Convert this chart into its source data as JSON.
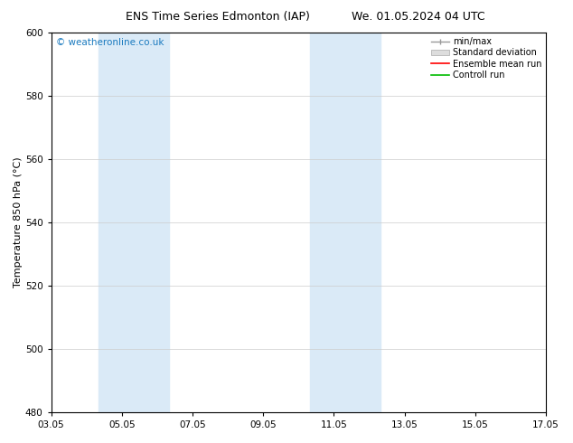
{
  "title_left": "ENS Time Series Edmonton (IAP)",
  "title_right": "We. 01.05.2024 04 UTC",
  "ylabel": "Temperature 850 hPa (°C)",
  "ylim": [
    480,
    600
  ],
  "yticks": [
    480,
    500,
    520,
    540,
    560,
    580,
    600
  ],
  "xtick_labels": [
    "03.05",
    "05.05",
    "07.05",
    "09.05",
    "11.05",
    "13.05",
    "15.05",
    "17.05"
  ],
  "xtick_positions": [
    0,
    2,
    4,
    6,
    8,
    10,
    12,
    14
  ],
  "watermark": "© weatheronline.co.uk",
  "watermark_color": "#1a7abf",
  "bg_color": "#ffffff",
  "plot_bg_color": "#ffffff",
  "shaded_bands": [
    {
      "x_start": 1.33,
      "x_end": 3.33,
      "color": "#daeaf7"
    },
    {
      "x_start": 7.33,
      "x_end": 9.33,
      "color": "#daeaf7"
    }
  ],
  "legend_items": [
    {
      "label": "min/max",
      "color": "#999999",
      "style": "errorbar"
    },
    {
      "label": "Standard deviation",
      "color": "#cccccc",
      "style": "fill"
    },
    {
      "label": "Ensemble mean run",
      "color": "#ff0000",
      "style": "line"
    },
    {
      "label": "Controll run",
      "color": "#00bb00",
      "style": "line"
    }
  ],
  "grid_color": "#cccccc",
  "tick_color": "#000000",
  "spine_color": "#000000",
  "title_fontsize": 9,
  "label_fontsize": 8,
  "tick_fontsize": 7.5,
  "legend_fontsize": 7,
  "watermark_fontsize": 7.5
}
